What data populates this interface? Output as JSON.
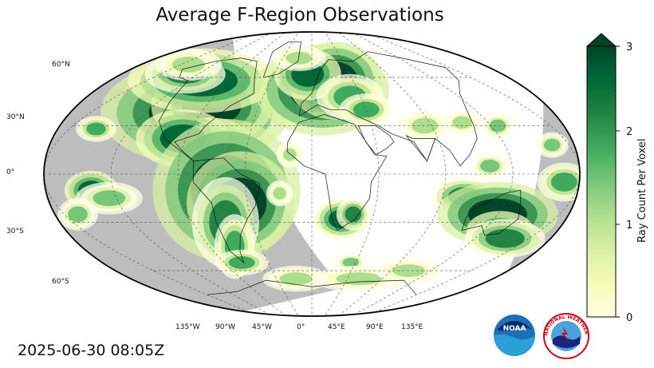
{
  "title": "Average F-Region Observations",
  "timestamp": "2025-06-30 08:05Z",
  "colorbar": {
    "label": "Ray Count Per Voxel",
    "ticks": [
      "0",
      "1",
      "2",
      "3"
    ],
    "min": 0,
    "max": 3,
    "extend": "max",
    "colormap": [
      "#ffffe5",
      "#f7fcb9",
      "#d9f0a3",
      "#addd8e",
      "#78c679",
      "#41ab5d",
      "#238443",
      "#006837",
      "#004529"
    ]
  },
  "map": {
    "projection": "Robinson",
    "lat_labels": [
      "60°N",
      "30°N",
      "0°",
      "30°S",
      "60°S"
    ],
    "lon_labels": [
      "135°W",
      "90°W",
      "45°W",
      "0°",
      "45°E",
      "90°E",
      "135°E"
    ],
    "night_color": "#bdbdbd",
    "day_color": "#ffffff"
  },
  "logos": {
    "noaa": "NOAA",
    "nws": "NATIONAL WEATHER SERVICE"
  }
}
